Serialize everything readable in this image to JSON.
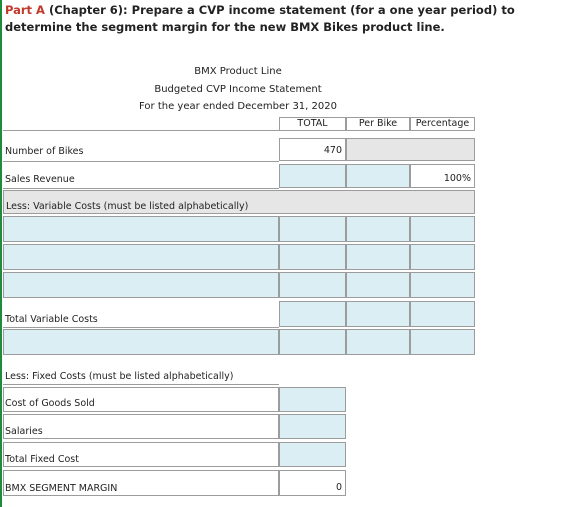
{
  "heading": {
    "part_label": "Part A",
    "text": " (Chapter 6): Prepare a CVP income statement (for a one year period) to determine the segment margin for the new BMX Bikes product line."
  },
  "statement": {
    "title": "BMX Product Line",
    "subtitle": "Budgeted CVP Income Statement",
    "period": "For the year ended December 31, 2020"
  },
  "columns": {
    "total": "TOTAL",
    "per_bike": "Per Bike",
    "percentage": "Percentage"
  },
  "rows": {
    "number_of_bikes": {
      "label": "Number of Bikes",
      "total": "470"
    },
    "sales_revenue": {
      "label": "Sales Revenue",
      "percentage": "100%"
    },
    "less_variable": {
      "label": "Less: Variable Costs (must be listed alphabetically)"
    },
    "total_variable": {
      "label": "Total Variable Costs"
    },
    "less_fixed": {
      "label": "Less: Fixed Costs (must be listed alphabetically)"
    },
    "cogs": {
      "label": "Cost of Goods Sold"
    },
    "salaries": {
      "label": "Salaries"
    },
    "total_fixed": {
      "label": "Total Fixed Cost"
    },
    "segment_margin": {
      "label": "BMX SEGMENT MARGIN",
      "total": "0"
    }
  },
  "colors": {
    "input_fill": "#dbeef4",
    "locked_fill": "#e6e6e6",
    "grid": "#9c9c9c",
    "heading_accent": "#c0392b",
    "side_bar": "#1e8c3a"
  }
}
